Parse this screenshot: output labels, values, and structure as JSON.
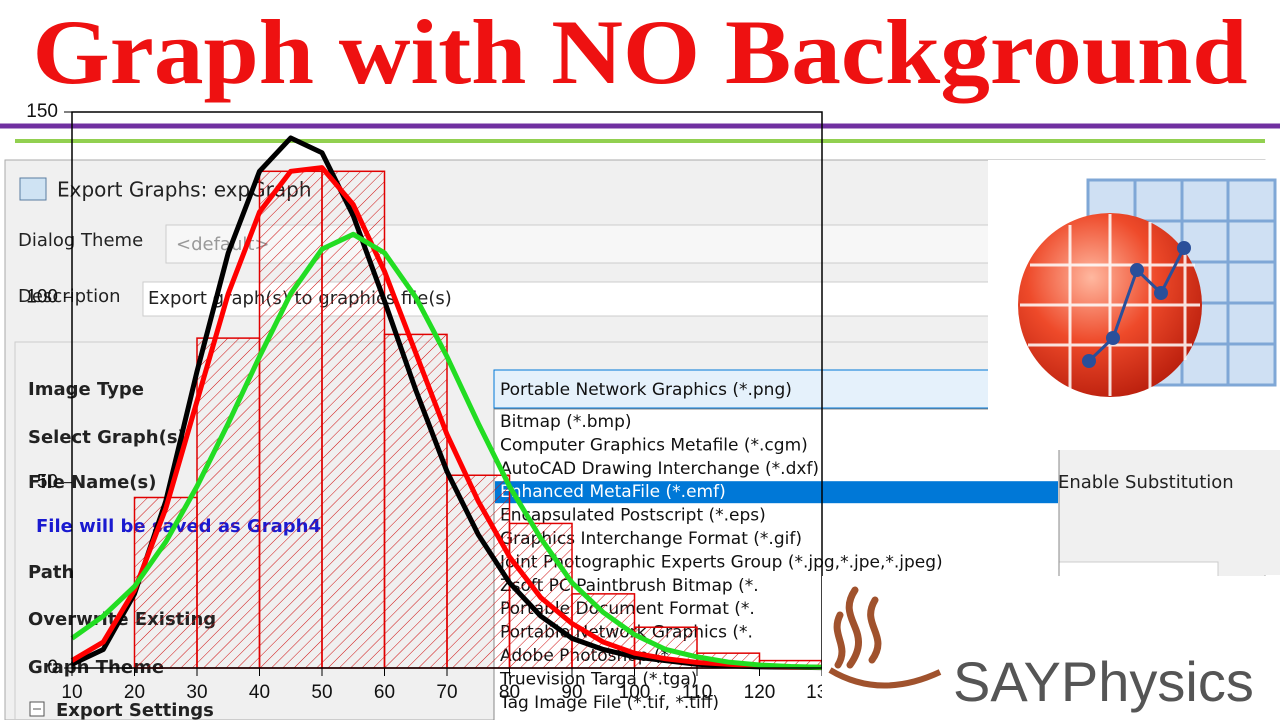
{
  "title": "Graph with NO Background",
  "dialog": {
    "window_title": "Export Graphs: expGraph",
    "dialog_theme_label": "Dialog Theme",
    "dialog_theme_value": "<default>",
    "description_label": "Description",
    "description_value": "Export graph(s) to graphics file(s)",
    "labels": [
      "Image Type",
      "Select Graph(s)",
      "File Name(s)",
      "Path",
      "Overwrite Existing",
      "Graph Theme",
      "Export Settings"
    ],
    "note": "File will be saved as Graph4",
    "image_type": "Portable Network Graphics (*.png)",
    "options": [
      "Bitmap (*.bmp)",
      "Computer Graphics Metafile (*.cgm)",
      "AutoCAD Drawing Interchange (*.dxf)",
      "Enhanced MetaFile (*.emf)",
      "Encapsulated Postscript (*.eps)",
      "Graphics Interchange Format (*.gif)",
      "Joint Photographic Experts Group (*.jpg,*.jpe,*.jpeg)",
      "Zsoft PC Paintbrush Bitmap (*.",
      "Portable Document Format (*.",
      "Portable Network Graphics (*.",
      "Adobe Photoshop (*.",
      "Truevision Targa (*.tga)",
      "Tag Image File (*.tif, *.tiff)"
    ],
    "substitution": "Enable Substitution"
  },
  "logo": "SAYPhysics",
  "chart_data": {
    "type": "histogram",
    "bins": [
      10,
      20,
      30,
      40,
      50,
      60,
      70,
      80,
      90,
      100,
      110,
      120,
      130
    ],
    "values": [
      0,
      46,
      89,
      134,
      134,
      90,
      52,
      39,
      20,
      11,
      4,
      2
    ],
    "color": "#e00000",
    "xlim": [
      10,
      130
    ],
    "xticks": [
      10,
      20,
      30,
      40,
      50,
      60,
      70,
      80,
      90,
      100,
      110,
      120,
      130
    ],
    "ylim": [
      0,
      150
    ],
    "yticks": [
      0,
      50,
      100,
      150
    ],
    "curves": {
      "x": [
        10,
        15,
        20,
        25,
        30,
        35,
        40,
        45,
        50,
        55,
        60,
        65,
        70,
        75,
        80,
        85,
        90,
        95,
        100,
        105,
        110,
        115,
        120,
        125,
        130
      ],
      "series": [
        {
          "color": "#000000",
          "values": [
            1,
            5,
            20,
            45,
            80,
            112,
            134,
            143,
            139,
            122,
            99,
            75,
            53,
            36,
            23,
            14,
            8,
            5,
            3,
            2,
            1,
            0.6,
            0.3,
            0.2,
            0.1
          ]
        },
        {
          "color": "#ff0000",
          "values": [
            2,
            7,
            21,
            43,
            72,
            101,
            123,
            134,
            135,
            125,
            107,
            85,
            63,
            45,
            30,
            19,
            12,
            7,
            4,
            2.5,
            1.5,
            1,
            0.5,
            0.3,
            0.2
          ]
        },
        {
          "color": "#22dd22",
          "values": [
            8,
            14,
            22,
            34,
            49,
            66,
            84,
            101,
            113,
            117,
            112,
            100,
            84,
            66,
            49,
            35,
            23,
            15,
            9,
            5,
            3,
            1.6,
            0.8,
            0.4,
            0.2
          ]
        }
      ]
    }
  }
}
